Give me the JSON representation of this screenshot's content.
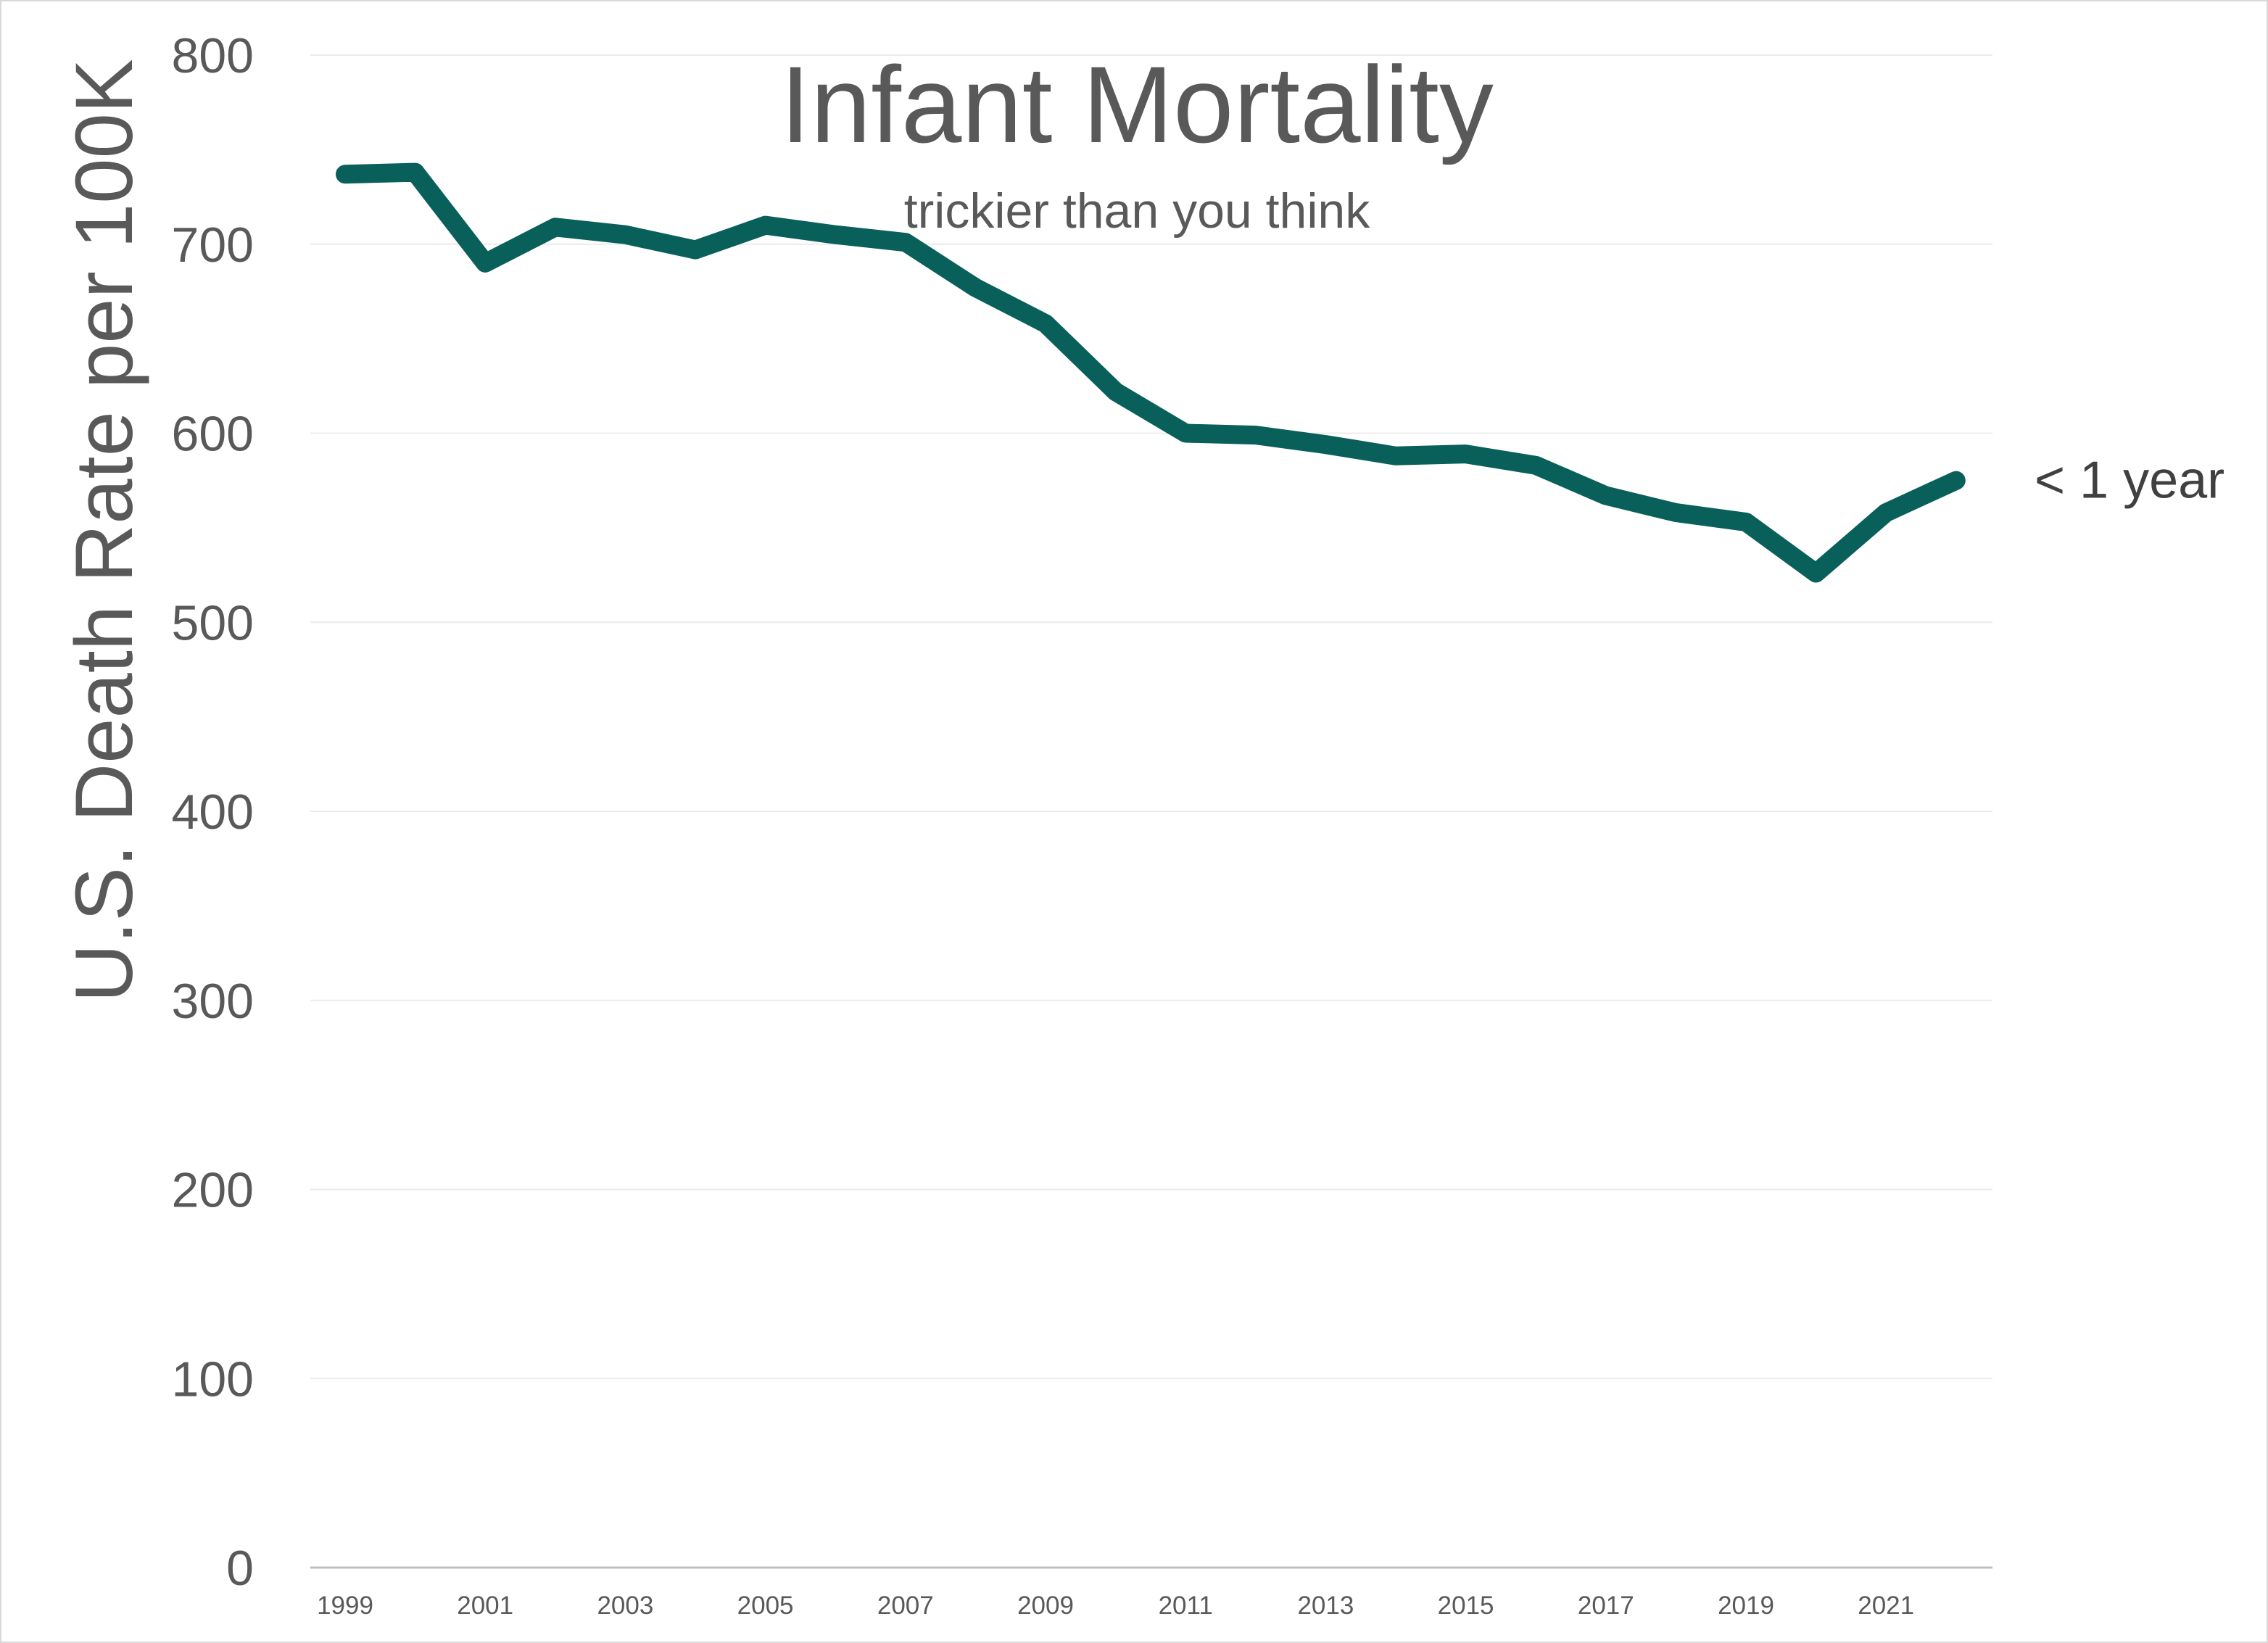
{
  "chart_data": {
    "type": "line",
    "title": "Infant Mortality",
    "subtitle": "trickier than you think",
    "xlabel": "",
    "ylabel": "U.S. Death Rate per 100K",
    "x": [
      1999,
      2000,
      2001,
      2002,
      2003,
      2004,
      2005,
      2006,
      2007,
      2008,
      2009,
      2010,
      2011,
      2012,
      2013,
      2014,
      2015,
      2016,
      2017,
      2018,
      2019,
      2020,
      2021,
      2022
    ],
    "x_tick_labels": [
      "1999",
      "2001",
      "2003",
      "2005",
      "2007",
      "2009",
      "2011",
      "2013",
      "2015",
      "2017",
      "2019",
      "2021"
    ],
    "ylim": [
      0,
      800
    ],
    "y_ticks": [
      0,
      100,
      200,
      300,
      400,
      500,
      600,
      700,
      800
    ],
    "grid": true,
    "series": [
      {
        "name": "< 1 year",
        "color": "#09605a",
        "values": [
          737,
          738,
          690,
          709,
          705,
          697,
          710,
          705,
          701,
          677,
          658,
          622,
          600,
          599,
          594,
          588,
          589,
          583,
          567,
          558,
          553,
          526,
          558,
          575
        ]
      }
    ]
  }
}
